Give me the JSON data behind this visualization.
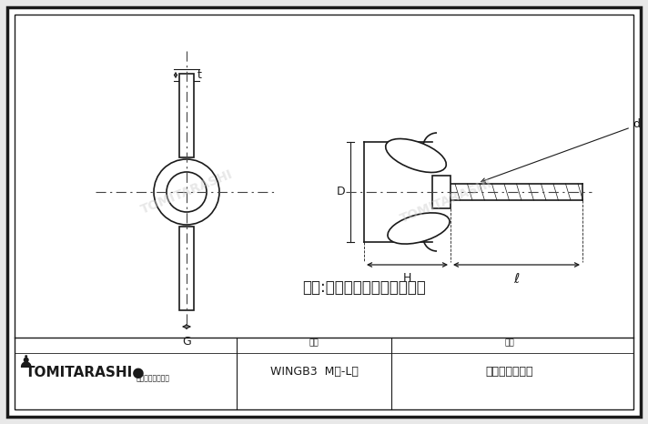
{
  "bg_color": "#e8e8e8",
  "drawing_bg": "#ffffff",
  "line_color": "#1a1a1a",
  "dash_color": "#444444",
  "watermark_color": "#cccccc",
  "watermark_text": "TOMITARASHI",
  "title_text": "羽根:下向きに開いています。",
  "footer_model": "WINGB3  M径-L寸",
  "footer_label_model": "型番",
  "footer_name": "プレス螺ボルト",
  "footer_label_name": "品名",
  "company_name": "TOMITARASHI●",
  "company_sub": "富田螺子株式会社",
  "dim_t": "t",
  "dim_d": "d",
  "dim_D": "D",
  "dim_G": "G",
  "dim_H": "H",
  "dim_l": "ℓ"
}
